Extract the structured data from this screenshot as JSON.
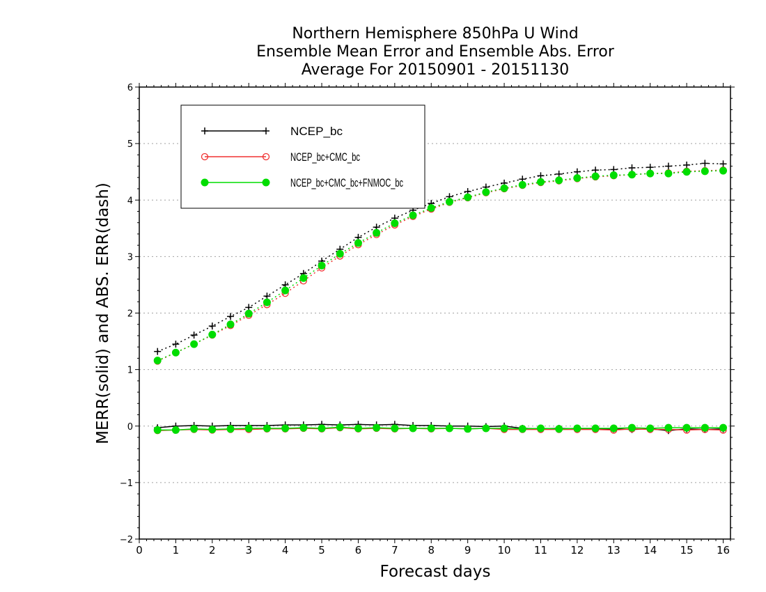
{
  "chart_data": {
    "type": "line",
    "title": [
      "Northern Hemisphere 850hPa U Wind",
      "Ensemble Mean Error and Ensemble Abs. Error",
      "Average For 20150901 - 20151130"
    ],
    "xlabel": "Forecast days",
    "ylabel": "MERR(solid) and ABS. ERR(dash)",
    "xlim": [
      0,
      16.2
    ],
    "ylim": [
      -2,
      6
    ],
    "xticks": [
      "0",
      "1",
      "2",
      "3",
      "4",
      "5",
      "6",
      "7",
      "8",
      "9",
      "10",
      "11",
      "12",
      "13",
      "14",
      "15",
      "16"
    ],
    "yticks": [
      "−2",
      "−1",
      "0",
      "1",
      "2",
      "3",
      "4",
      "5",
      "6"
    ],
    "grid": "horizontal dotted",
    "legend_position": "top-left",
    "x": [
      0.5,
      1,
      1.5,
      2,
      2.5,
      3,
      3.5,
      4,
      4.5,
      5,
      5.5,
      6,
      6.5,
      7,
      7.5,
      8,
      8.5,
      9,
      9.5,
      10,
      10.5,
      11,
      11.5,
      12,
      12.5,
      13,
      13.5,
      14,
      14.5,
      15,
      15.5,
      16
    ],
    "series": [
      {
        "name": "NCEP_bc",
        "color": "#000000",
        "marker": "plus",
        "abs_err": [
          1.32,
          1.45,
          1.61,
          1.77,
          1.94,
          2.1,
          2.3,
          2.5,
          2.7,
          2.92,
          3.13,
          3.34,
          3.52,
          3.68,
          3.82,
          3.94,
          4.06,
          4.15,
          4.23,
          4.3,
          4.37,
          4.43,
          4.46,
          4.5,
          4.53,
          4.54,
          4.57,
          4.58,
          4.6,
          4.62,
          4.65,
          4.64
        ],
        "merr": [
          -0.03,
          0.0,
          0.01,
          0.0,
          0.01,
          0.01,
          0.01,
          0.02,
          0.02,
          0.03,
          0.02,
          0.03,
          0.02,
          0.03,
          0.01,
          0.01,
          0.0,
          0.0,
          -0.01,
          0.0,
          -0.04,
          -0.05,
          -0.04,
          -0.05,
          -0.05,
          -0.05,
          -0.06,
          -0.05,
          -0.08,
          -0.05,
          -0.06,
          -0.05
        ]
      },
      {
        "name": "NCEP_bc+CMC_bc",
        "color": "#f03030",
        "marker": "open-circle",
        "abs_err": [
          1.15,
          1.3,
          1.45,
          1.61,
          1.78,
          1.96,
          2.15,
          2.35,
          2.57,
          2.8,
          3.01,
          3.21,
          3.39,
          3.56,
          3.71,
          3.84,
          3.96,
          4.04,
          4.13,
          4.2,
          4.26,
          4.31,
          4.34,
          4.38,
          4.41,
          4.43,
          4.45,
          4.47,
          4.48,
          4.51,
          4.52,
          4.53
        ],
        "merr": [
          -0.08,
          -0.07,
          -0.06,
          -0.07,
          -0.06,
          -0.06,
          -0.05,
          -0.05,
          -0.04,
          -0.05,
          -0.03,
          -0.05,
          -0.04,
          -0.05,
          -0.04,
          -0.05,
          -0.04,
          -0.05,
          -0.04,
          -0.06,
          -0.06,
          -0.06,
          -0.06,
          -0.06,
          -0.06,
          -0.07,
          -0.05,
          -0.06,
          -0.06,
          -0.07,
          -0.06,
          -0.07
        ]
      },
      {
        "name": "NCEP_bc+CMC_bc+FNMOC_bc",
        "color": "#00dd00",
        "marker": "filled-circle",
        "abs_err": [
          1.16,
          1.3,
          1.45,
          1.62,
          1.8,
          1.99,
          2.19,
          2.4,
          2.62,
          2.84,
          3.05,
          3.24,
          3.42,
          3.59,
          3.73,
          3.86,
          3.97,
          4.05,
          4.14,
          4.21,
          4.27,
          4.32,
          4.35,
          4.39,
          4.42,
          4.44,
          4.45,
          4.47,
          4.47,
          4.5,
          4.51,
          4.52
        ],
        "merr": [
          -0.07,
          -0.07,
          -0.05,
          -0.06,
          -0.05,
          -0.04,
          -0.04,
          -0.04,
          -0.03,
          -0.04,
          -0.02,
          -0.04,
          -0.03,
          -0.04,
          -0.04,
          -0.04,
          -0.04,
          -0.05,
          -0.04,
          -0.04,
          -0.05,
          -0.04,
          -0.05,
          -0.04,
          -0.04,
          -0.04,
          -0.03,
          -0.04,
          -0.03,
          -0.03,
          -0.03,
          -0.03
        ]
      }
    ]
  }
}
